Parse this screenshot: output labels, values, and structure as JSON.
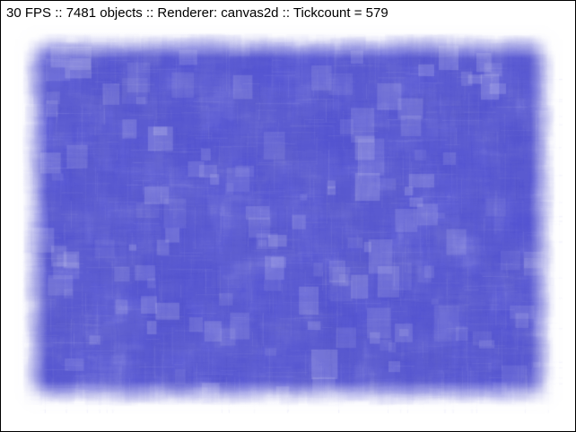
{
  "status": {
    "text": "30 FPS :: 7481 objects :: Renderer: canvas2d :: Tickcount = 579"
  },
  "render": {
    "sprite_color": "#5a5ad6",
    "background": "#ffffff"
  }
}
